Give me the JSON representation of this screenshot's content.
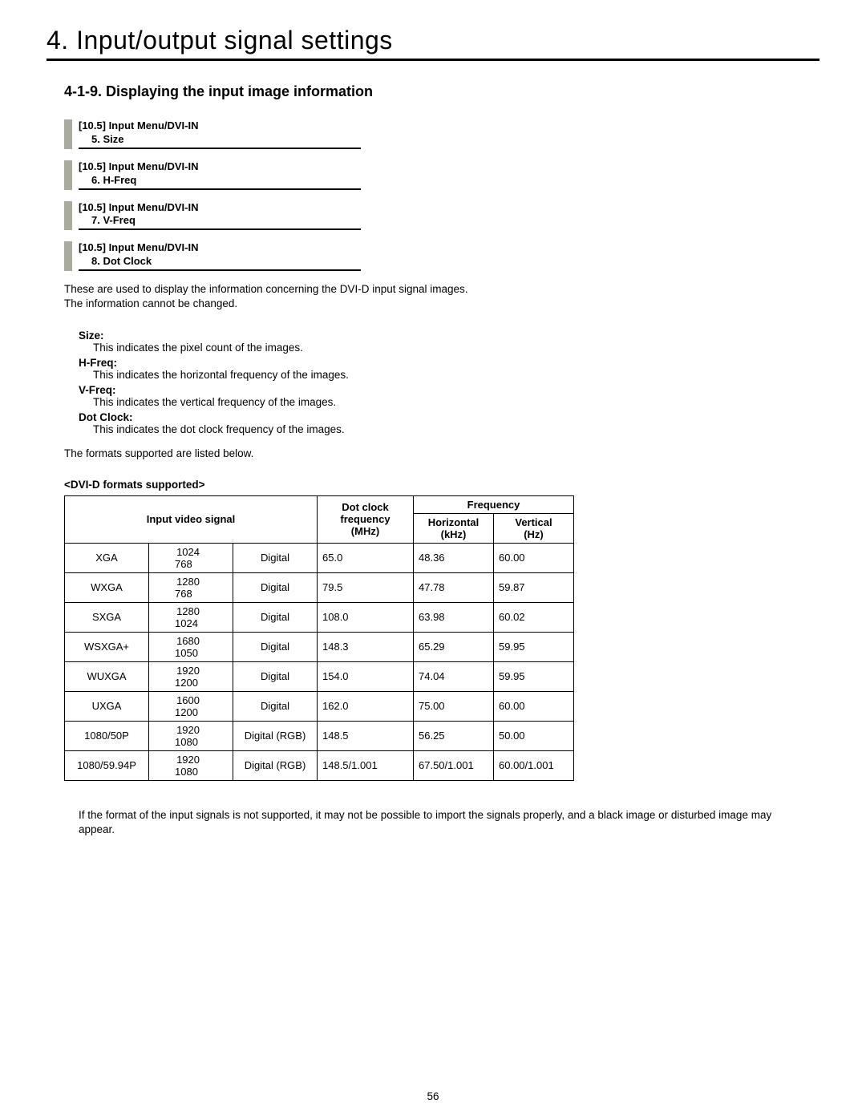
{
  "chapter_title": "4. Input/output signal settings",
  "section_title": "4-1-9. Displaying the input image information",
  "menu_items": [
    {
      "path": "[10.5] Input Menu/DVI-IN",
      "item": "5. Size"
    },
    {
      "path": "[10.5] Input Menu/DVI-IN",
      "item": "6. H-Freq"
    },
    {
      "path": "[10.5] Input Menu/DVI-IN",
      "item": "7. V-Freq"
    },
    {
      "path": "[10.5] Input Menu/DVI-IN",
      "item": "8. Dot Clock"
    }
  ],
  "intro_line1": "These are used to display the information concerning the DVI-D input signal images.",
  "intro_line2": "The information cannot be changed.",
  "definitions": [
    {
      "term": "Size:",
      "desc": "This indicates the pixel count of the images."
    },
    {
      "term": "H-Freq:",
      "desc": "This indicates the horizontal frequency of the images."
    },
    {
      "term": "V-Freq:",
      "desc": "This indicates the vertical frequency of the images."
    },
    {
      "term": "Dot Clock:",
      "desc": "This indicates the dot clock frequency of the images."
    }
  ],
  "formats_intro": "The formats supported are listed below.",
  "table_title": "<DVI-D formats supported>",
  "table": {
    "headers": {
      "input_signal": "Input video signal",
      "dot_clock": "Dot clock frequency",
      "dot_clock_unit": "(MHz)",
      "frequency": "Frequency",
      "horizontal": "Horizontal",
      "horizontal_unit": "(kHz)",
      "vertical": "Vertical",
      "vertical_unit": "(Hz)"
    },
    "rows": [
      {
        "name": "XGA",
        "w": "1024",
        "x": "",
        "h": "768",
        "type": "Digital",
        "dot": "65.0",
        "hfreq": "48.36",
        "vfreq": "60.00"
      },
      {
        "name": "WXGA",
        "w": "1280",
        "x": "",
        "h": "768",
        "type": "Digital",
        "dot": "79.5",
        "hfreq": "47.78",
        "vfreq": "59.87"
      },
      {
        "name": "SXGA",
        "w": "1280",
        "x": "",
        "h": "1024",
        "type": "Digital",
        "dot": "108.0",
        "hfreq": "63.98",
        "vfreq": "60.02"
      },
      {
        "name": "WSXGA+",
        "w": "1680",
        "x": "",
        "h": "1050",
        "type": "Digital",
        "dot": "148.3",
        "hfreq": "65.29",
        "vfreq": "59.95"
      },
      {
        "name": "WUXGA",
        "w": "1920",
        "x": "",
        "h": "1200",
        "type": "Digital",
        "dot": "154.0",
        "hfreq": "74.04",
        "vfreq": "59.95"
      },
      {
        "name": "UXGA",
        "w": "1600",
        "x": "",
        "h": "1200",
        "type": "Digital",
        "dot": "162.0",
        "hfreq": "75.00",
        "vfreq": "60.00"
      },
      {
        "name": "1080/50P",
        "w": "1920",
        "x": "",
        "h": "1080",
        "type": "Digital (RGB)",
        "dot": "148.5",
        "hfreq": "56.25",
        "vfreq": "50.00"
      },
      {
        "name": "1080/59.94P",
        "w": "1920",
        "x": "",
        "h": "1080",
        "type": "Digital (RGB)",
        "dot": "148.5/1.001",
        "hfreq": "67.50/1.001",
        "vfreq": "60.00/1.001"
      }
    ]
  },
  "footnote": "If the format of the input signals is not supported, it may not be possible to import the signals properly, and a black image or disturbed image may appear.",
  "page_number": "56",
  "colors": {
    "menu_bar": "#a9ab9f",
    "text": "#000000",
    "background": "#ffffff",
    "border": "#000000"
  }
}
